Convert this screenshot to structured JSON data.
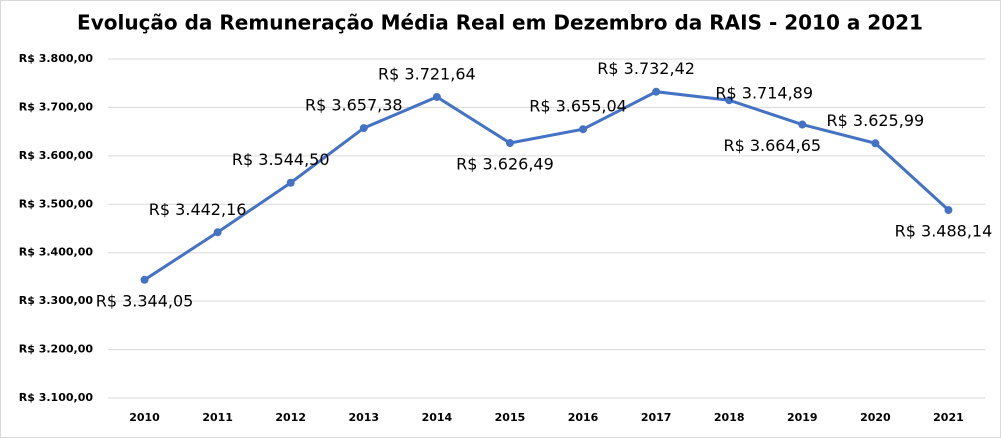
{
  "chart_data": {
    "type": "line",
    "title": "Evolução da Remuneração Média Real em Dezembro da RAIS - 2010 a 2021",
    "categories": [
      "2010",
      "2011",
      "2012",
      "2013",
      "2014",
      "2015",
      "2016",
      "2017",
      "2018",
      "2019",
      "2020",
      "2021"
    ],
    "series": [
      {
        "name": "Remuneração Média Real",
        "color": "#4472c4",
        "values": [
          3344.05,
          3442.16,
          3544.5,
          3657.38,
          3721.64,
          3626.49,
          3655.04,
          3732.42,
          3714.89,
          3664.65,
          3625.99,
          3488.14
        ],
        "value_labels": [
          "R$ 3.344,05",
          "R$ 3.442,16",
          "R$ 3.544,50",
          "R$ 3.657,38",
          "R$ 3.721,64",
          "R$ 3.626,49",
          "R$ 3.655,04",
          "R$ 3.732,42",
          "R$ 3.714,89",
          "R$ 3.664,65",
          "R$ 3.625,99",
          "R$ 3.488,14"
        ]
      }
    ],
    "ylim": [
      3100,
      3800
    ],
    "yticks": [
      {
        "value": 3100,
        "label": "R$ 3.100,00"
      },
      {
        "value": 3200,
        "label": "R$ 3.200,00"
      },
      {
        "value": 3300,
        "label": "R$ 3.300,00"
      },
      {
        "value": 3400,
        "label": "R$ 3.400,00"
      },
      {
        "value": 3500,
        "label": "R$ 3.500,00"
      },
      {
        "value": 3600,
        "label": "R$ 3.600,00"
      },
      {
        "value": 3700,
        "label": "R$ 3.700,00"
      },
      {
        "value": 3800,
        "label": "R$ 3.800,00"
      }
    ],
    "grid": true
  }
}
